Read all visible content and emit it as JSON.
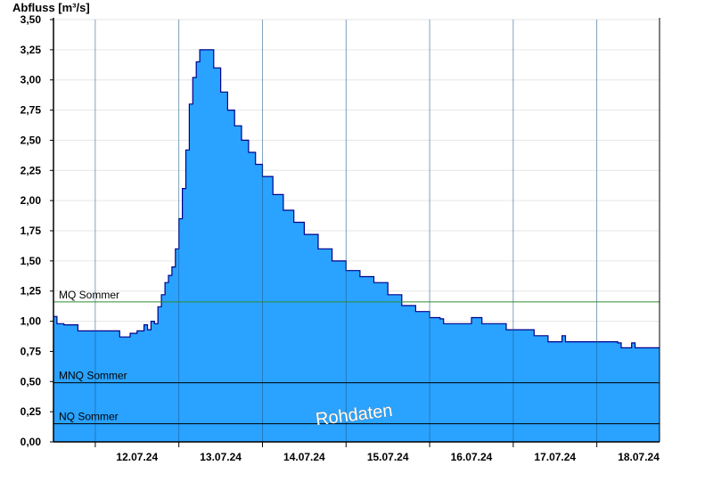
{
  "chart_data": {
    "type": "area",
    "ylabel": "Abfluss [m³/s]",
    "ylim": [
      0,
      3.5
    ],
    "yticks": [
      "0,00",
      "0,25",
      "0,50",
      "0,75",
      "1,00",
      "1,25",
      "1,50",
      "1,75",
      "2,00",
      "2,25",
      "2,50",
      "2,75",
      "3,00",
      "3,25",
      "3,50"
    ],
    "x_range": [
      "2024-07-11T12:00",
      "2024-07-18T18:00"
    ],
    "day_boundaries": [
      "2024-07-12T00:00",
      "2024-07-13T00:00",
      "2024-07-14T00:00",
      "2024-07-15T00:00",
      "2024-07-16T00:00",
      "2024-07-17T00:00",
      "2024-07-18T00:00"
    ],
    "xtick_labels": [
      {
        "at": "2024-07-12T12:00",
        "label": "12.07.24"
      },
      {
        "at": "2024-07-13T12:00",
        "label": "13.07.24"
      },
      {
        "at": "2024-07-14T12:00",
        "label": "14.07.24"
      },
      {
        "at": "2024-07-15T12:00",
        "label": "15.07.24"
      },
      {
        "at": "2024-07-16T12:00",
        "label": "16.07.24"
      },
      {
        "at": "2024-07-17T12:00",
        "label": "17.07.24"
      },
      {
        "at": "2024-07-18T12:00",
        "label": "18.07.24"
      }
    ],
    "grid": true,
    "series": [
      {
        "fill_color": "#29a3ff",
        "line_color": "#00008b",
        "points": [
          [
            "2024-07-11T12:00",
            1.04
          ],
          [
            "2024-07-11T13:00",
            0.98
          ],
          [
            "2024-07-11T15:00",
            0.97
          ],
          [
            "2024-07-11T19:00",
            0.92
          ],
          [
            "2024-07-12T04:00",
            0.92
          ],
          [
            "2024-07-12T07:00",
            0.87
          ],
          [
            "2024-07-12T10:00",
            0.9
          ],
          [
            "2024-07-12T12:00",
            0.92
          ],
          [
            "2024-07-12T14:00",
            0.97
          ],
          [
            "2024-07-12T15:00",
            0.93
          ],
          [
            "2024-07-12T16:00",
            1.0
          ],
          [
            "2024-07-12T17:00",
            0.98
          ],
          [
            "2024-07-12T18:00",
            1.12
          ],
          [
            "2024-07-12T19:00",
            1.22
          ],
          [
            "2024-07-12T20:00",
            1.32
          ],
          [
            "2024-07-12T21:00",
            1.38
          ],
          [
            "2024-07-12T22:00",
            1.45
          ],
          [
            "2024-07-12T23:00",
            1.6
          ],
          [
            "2024-07-13T00:00",
            1.85
          ],
          [
            "2024-07-13T01:00",
            2.1
          ],
          [
            "2024-07-13T02:00",
            2.42
          ],
          [
            "2024-07-13T03:00",
            2.8
          ],
          [
            "2024-07-13T04:00",
            3.02
          ],
          [
            "2024-07-13T05:00",
            3.15
          ],
          [
            "2024-07-13T06:00",
            3.25
          ],
          [
            "2024-07-13T08:00",
            3.25
          ],
          [
            "2024-07-13T10:00",
            3.1
          ],
          [
            "2024-07-13T12:00",
            2.9
          ],
          [
            "2024-07-13T14:00",
            2.75
          ],
          [
            "2024-07-13T16:00",
            2.62
          ],
          [
            "2024-07-13T18:00",
            2.5
          ],
          [
            "2024-07-13T20:00",
            2.4
          ],
          [
            "2024-07-13T22:00",
            2.3
          ],
          [
            "2024-07-14T00:00",
            2.2
          ],
          [
            "2024-07-14T03:00",
            2.05
          ],
          [
            "2024-07-14T06:00",
            1.92
          ],
          [
            "2024-07-14T09:00",
            1.82
          ],
          [
            "2024-07-14T12:00",
            1.72
          ],
          [
            "2024-07-14T16:00",
            1.6
          ],
          [
            "2024-07-14T20:00",
            1.5
          ],
          [
            "2024-07-15T00:00",
            1.42
          ],
          [
            "2024-07-15T04:00",
            1.37
          ],
          [
            "2024-07-15T08:00",
            1.32
          ],
          [
            "2024-07-15T12:00",
            1.22
          ],
          [
            "2024-07-15T16:00",
            1.13
          ],
          [
            "2024-07-15T20:00",
            1.08
          ],
          [
            "2024-07-16T00:00",
            1.03
          ],
          [
            "2024-07-16T03:00",
            1.02
          ],
          [
            "2024-07-16T04:00",
            0.98
          ],
          [
            "2024-07-16T11:00",
            0.98
          ],
          [
            "2024-07-16T12:00",
            1.03
          ],
          [
            "2024-07-16T14:00",
            1.03
          ],
          [
            "2024-07-16T15:00",
            0.98
          ],
          [
            "2024-07-16T21:00",
            0.98
          ],
          [
            "2024-07-16T22:00",
            0.93
          ],
          [
            "2024-07-17T05:00",
            0.93
          ],
          [
            "2024-07-17T06:00",
            0.88
          ],
          [
            "2024-07-17T08:00",
            0.88
          ],
          [
            "2024-07-17T10:00",
            0.83
          ],
          [
            "2024-07-17T12:00",
            0.83
          ],
          [
            "2024-07-17T14:00",
            0.88
          ],
          [
            "2024-07-17T15:00",
            0.83
          ],
          [
            "2024-07-18T06:00",
            0.82
          ],
          [
            "2024-07-18T07:00",
            0.78
          ],
          [
            "2024-07-18T09:00",
            0.78
          ],
          [
            "2024-07-18T10:00",
            0.82
          ],
          [
            "2024-07-18T11:00",
            0.78
          ],
          [
            "2024-07-18T18:00",
            0.78
          ]
        ]
      }
    ],
    "reference_lines": [
      {
        "name": "MQ Sommer",
        "value": 1.16,
        "color": "#2e8b2e"
      },
      {
        "name": "MNQ Sommer",
        "value": 0.49,
        "color": "#000000"
      },
      {
        "name": "NQ Sommer",
        "value": 0.15,
        "color": "#000000"
      }
    ],
    "watermark": "Rohdaten"
  }
}
